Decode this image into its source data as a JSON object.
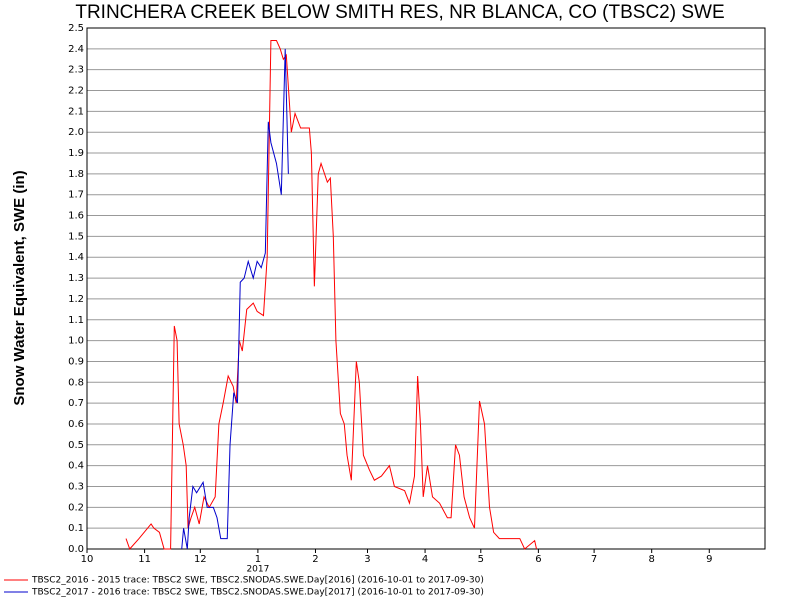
{
  "chart_data": {
    "type": "line",
    "title": "TRINCHERA CREEK BELOW SMITH RES, NR BLANCA, CO (TBSC2) SWE",
    "y_label": "Snow Water Equivalent, SWE (in)",
    "x_annotation": "2017",
    "xlim": [
      0,
      365
    ],
    "xticks": [
      {
        "value": 0,
        "label": "10"
      },
      {
        "value": 31,
        "label": "11"
      },
      {
        "value": 61,
        "label": "12"
      },
      {
        "value": 92,
        "label": "1"
      },
      {
        "value": 123,
        "label": "2"
      },
      {
        "value": 151,
        "label": "3"
      },
      {
        "value": 182,
        "label": "4"
      },
      {
        "value": 212,
        "label": "5"
      },
      {
        "value": 243,
        "label": "6"
      },
      {
        "value": 273,
        "label": "7"
      },
      {
        "value": 304,
        "label": "8"
      },
      {
        "value": 335,
        "label": "9"
      }
    ],
    "ylim": [
      0,
      2.5
    ],
    "yticks": [
      {
        "value": 0,
        "label": "0.0"
      },
      0.1,
      0.2,
      0.3,
      0.4,
      0.5,
      0.6,
      0.7,
      0.8,
      0.9,
      {
        "value": 1,
        "label": "1.0"
      },
      1.1,
      1.2,
      1.3,
      1.4,
      1.5,
      1.6,
      1.7,
      1.8,
      1.9,
      {
        "value": 2,
        "label": "2.0"
      },
      2.1,
      2.2,
      2.3,
      2.4,
      2.5
    ],
    "grid": true,
    "series": [
      {
        "name": "TBSC2_2016 - 2015 trace: TBSC2 SWE, TBSC2.SNODAS.SWE.Day[2016] (2016-10-01 to 2017-09-30)",
        "color": "#ff0000",
        "x": [
          21,
          23,
          28,
          34.5,
          36,
          39,
          41.5,
          45,
          47,
          48.5,
          49.6,
          51.8,
          53.4,
          54.4,
          56,
          58,
          60.4,
          63,
          65.8,
          69,
          71,
          73.3,
          76,
          78.7,
          80.3,
          82,
          83.6,
          86,
          89.5,
          91.6,
          95,
          97,
          99,
          102,
          104,
          105.7,
          107.3,
          110,
          112,
          115,
          119.7,
          120.8,
          122.4,
          124.5,
          126,
          129.4,
          131,
          132.6,
          134,
          136.4,
          138.5,
          140,
          142.3,
          145,
          146.6,
          148.8,
          152,
          154.7,
          158.5,
          162.8,
          165.5,
          171,
          173.6,
          176.3,
          178,
          179.5,
          181,
          183.3,
          186,
          189.8,
          194,
          196,
          198.4,
          200.5,
          203,
          206,
          208.6,
          211.3,
          214,
          216.7,
          218.9,
          222,
          233,
          235.6,
          241,
          242
        ],
        "values": [
          0.05,
          0,
          0.05,
          0.12,
          0.1,
          0.08,
          0,
          0,
          1.07,
          1.0,
          0.6,
          0.5,
          0.4,
          0.1,
          0.15,
          0.2,
          0.12,
          0.25,
          0.2,
          0.25,
          0.6,
          0.7,
          0.83,
          0.78,
          0.7,
          1.0,
          0.95,
          1.15,
          1.18,
          1.14,
          1.12,
          1.4,
          2.44,
          2.44,
          2.4,
          2.35,
          2.37,
          2.0,
          2.09,
          2.02,
          2.02,
          1.9,
          1.26,
          1.8,
          1.85,
          1.76,
          1.78,
          1.5,
          1.0,
          0.65,
          0.6,
          0.45,
          0.33,
          0.9,
          0.8,
          0.45,
          0.38,
          0.33,
          0.35,
          0.4,
          0.3,
          0.28,
          0.22,
          0.35,
          0.83,
          0.6,
          0.25,
          0.4,
          0.25,
          0.22,
          0.15,
          0.15,
          0.5,
          0.45,
          0.25,
          0.15,
          0.1,
          0.71,
          0.6,
          0.2,
          0.08,
          0.05,
          0.05,
          0,
          0.04,
          0
        ]
      },
      {
        "name": "TBSC2_2017 - 2016 trace: TBSC2 SWE, TBSC2.SNODAS.SWE.Day[2017] (2016-10-01 to 2017-09-30)",
        "color": "#0000cc",
        "x": [
          51,
          52,
          54,
          55,
          57,
          59,
          62.5,
          64.7,
          68,
          70,
          72,
          75.5,
          77,
          79,
          81,
          82.5,
          84.6,
          86.8,
          89.5,
          91.6,
          93.8,
          96,
          97.6,
          99,
          102,
          104.6,
          106.7,
          108.4
        ],
        "values": [
          0,
          0.1,
          0,
          0.15,
          0.3,
          0.27,
          0.32,
          0.2,
          0.2,
          0.15,
          0.05,
          0.05,
          0.5,
          0.75,
          0.7,
          1.28,
          1.3,
          1.38,
          1.3,
          1.38,
          1.35,
          1.42,
          2.05,
          1.95,
          1.85,
          1.7,
          2.4,
          1.8
        ]
      }
    ]
  }
}
